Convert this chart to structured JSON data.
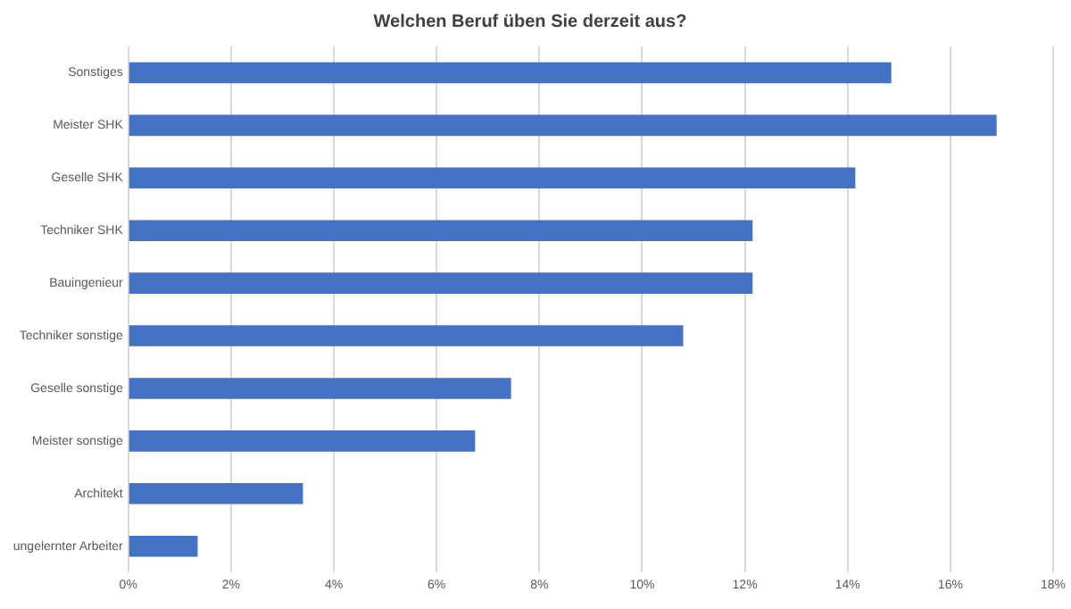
{
  "chart_data": {
    "type": "bar",
    "orientation": "horizontal",
    "title": "Welchen Beruf üben Sie derzeit aus?",
    "categories": [
      "Sonstiges",
      "Meister SHK",
      "Geselle SHK",
      "Techniker SHK",
      "Bauingenieur",
      "Techniker sonstige",
      "Geselle sonstige",
      "Meister sonstige",
      "Architekt",
      "ungelernter Arbeiter"
    ],
    "values": [
      14.85,
      16.9,
      14.15,
      12.15,
      12.15,
      10.8,
      7.45,
      6.75,
      3.4,
      1.35
    ],
    "color": "#4472c4",
    "xlim": [
      0,
      18
    ],
    "xticks": [
      {
        "value": 0,
        "label": "0%"
      },
      {
        "value": 2,
        "label": "2%"
      },
      {
        "value": 4,
        "label": "4%"
      },
      {
        "value": 6,
        "label": "6%"
      },
      {
        "value": 8,
        "label": "8%"
      },
      {
        "value": 10,
        "label": "10%"
      },
      {
        "value": 12,
        "label": "12%"
      },
      {
        "value": 14,
        "label": "14%"
      },
      {
        "value": 16,
        "label": "16%"
      },
      {
        "value": 18,
        "label": "18%"
      }
    ],
    "grid": "x",
    "legend": false
  }
}
